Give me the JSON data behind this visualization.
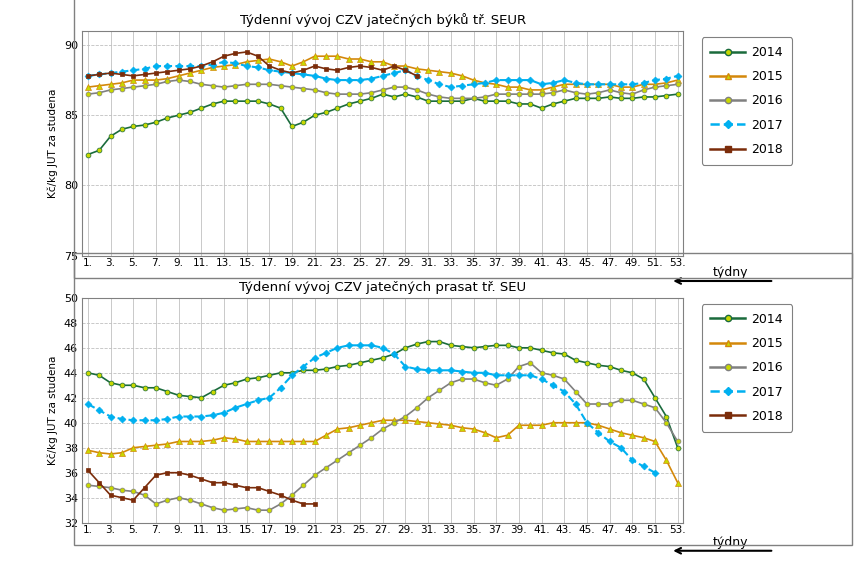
{
  "title1": "Týdenní vývoj CZV jatečných býků tř. SEUR",
  "title2": "Týdenní vývoj CZV jatečných prasat tř. SEU",
  "ylabel": "Kč/kg JUT za studena",
  "xlabel": "týdny",
  "weeks": [
    1,
    2,
    3,
    4,
    5,
    6,
    7,
    8,
    9,
    10,
    11,
    12,
    13,
    14,
    15,
    16,
    17,
    18,
    19,
    20,
    21,
    22,
    23,
    24,
    25,
    26,
    27,
    28,
    29,
    30,
    31,
    32,
    33,
    34,
    35,
    36,
    37,
    38,
    39,
    40,
    41,
    42,
    43,
    44,
    45,
    46,
    47,
    48,
    49,
    50,
    51,
    52,
    53
  ],
  "bulls_2014": [
    82.2,
    82.5,
    83.5,
    84.0,
    84.2,
    84.3,
    84.5,
    84.8,
    85.0,
    85.2,
    85.5,
    85.8,
    86.0,
    86.0,
    86.0,
    86.0,
    85.8,
    85.5,
    84.2,
    84.5,
    85.0,
    85.2,
    85.5,
    85.8,
    86.0,
    86.2,
    86.5,
    86.3,
    86.5,
    86.3,
    86.0,
    86.0,
    86.0,
    86.0,
    86.2,
    86.0,
    86.0,
    86.0,
    85.8,
    85.8,
    85.5,
    85.8,
    86.0,
    86.2,
    86.2,
    86.2,
    86.3,
    86.2,
    86.2,
    86.3,
    86.3,
    86.4,
    86.5
  ],
  "bulls_2015": [
    87.0,
    87.1,
    87.2,
    87.3,
    87.5,
    87.5,
    87.5,
    87.6,
    87.8,
    88.0,
    88.2,
    88.4,
    88.5,
    88.6,
    88.8,
    88.9,
    89.0,
    88.8,
    88.5,
    88.8,
    89.2,
    89.2,
    89.2,
    89.0,
    89.0,
    88.8,
    88.8,
    88.5,
    88.5,
    88.3,
    88.2,
    88.1,
    88.0,
    87.8,
    87.5,
    87.3,
    87.2,
    87.0,
    87.0,
    86.8,
    86.8,
    87.0,
    87.2,
    87.2,
    87.2,
    87.2,
    87.2,
    87.0,
    87.0,
    87.2,
    87.2,
    87.3,
    87.5
  ],
  "bulls_2016": [
    86.5,
    86.6,
    86.8,
    86.9,
    87.0,
    87.1,
    87.2,
    87.4,
    87.5,
    87.4,
    87.2,
    87.1,
    87.0,
    87.1,
    87.2,
    87.2,
    87.2,
    87.1,
    87.0,
    86.9,
    86.8,
    86.6,
    86.5,
    86.5,
    86.5,
    86.6,
    86.8,
    87.0,
    87.0,
    86.8,
    86.5,
    86.3,
    86.2,
    86.2,
    86.2,
    86.3,
    86.5,
    86.5,
    86.5,
    86.5,
    86.5,
    86.6,
    86.8,
    86.6,
    86.5,
    86.6,
    86.8,
    86.6,
    86.5,
    86.8,
    87.0,
    87.1,
    87.2
  ],
  "bulls_2017": [
    87.8,
    87.9,
    88.0,
    88.1,
    88.2,
    88.3,
    88.5,
    88.5,
    88.5,
    88.5,
    88.5,
    88.6,
    88.8,
    88.7,
    88.5,
    88.4,
    88.2,
    88.1,
    88.0,
    87.9,
    87.8,
    87.6,
    87.5,
    87.5,
    87.5,
    87.6,
    87.8,
    88.0,
    88.2,
    87.8,
    87.5,
    87.2,
    87.0,
    87.1,
    87.2,
    87.3,
    87.5,
    87.5,
    87.5,
    87.5,
    87.2,
    87.3,
    87.5,
    87.3,
    87.2,
    87.2,
    87.2,
    87.2,
    87.2,
    87.3,
    87.5,
    87.6,
    87.8
  ],
  "bulls_2018": [
    87.8,
    87.9,
    88.0,
    87.9,
    87.8,
    87.9,
    88.0,
    88.1,
    88.2,
    88.3,
    88.5,
    88.8,
    89.2,
    89.4,
    89.5,
    89.2,
    88.5,
    88.2,
    88.0,
    88.2,
    88.5,
    88.3,
    88.2,
    88.4,
    88.5,
    88.4,
    88.2,
    88.5,
    88.2,
    87.8,
    null,
    null,
    null,
    null,
    null,
    null,
    null,
    null,
    null,
    null,
    null,
    null,
    null,
    null,
    null,
    null,
    null,
    null,
    null,
    null,
    null,
    null,
    null
  ],
  "pigs_2014": [
    44.0,
    43.8,
    43.2,
    43.0,
    43.0,
    42.8,
    42.8,
    42.5,
    42.2,
    42.1,
    42.0,
    42.5,
    43.0,
    43.2,
    43.5,
    43.6,
    43.8,
    44.0,
    44.0,
    44.2,
    44.2,
    44.3,
    44.5,
    44.6,
    44.8,
    45.0,
    45.2,
    45.5,
    46.0,
    46.3,
    46.5,
    46.5,
    46.2,
    46.1,
    46.0,
    46.1,
    46.2,
    46.2,
    46.0,
    46.0,
    45.8,
    45.6,
    45.5,
    45.0,
    44.8,
    44.6,
    44.5,
    44.2,
    44.0,
    43.5,
    42.0,
    40.5,
    38.0
  ],
  "pigs_2015": [
    37.8,
    37.6,
    37.5,
    37.6,
    38.0,
    38.1,
    38.2,
    38.3,
    38.5,
    38.5,
    38.5,
    38.6,
    38.8,
    38.7,
    38.5,
    38.5,
    38.5,
    38.5,
    38.5,
    38.5,
    38.5,
    39.0,
    39.5,
    39.6,
    39.8,
    40.0,
    40.2,
    40.2,
    40.2,
    40.1,
    40.0,
    39.9,
    39.8,
    39.6,
    39.5,
    39.2,
    38.8,
    39.0,
    39.8,
    39.8,
    39.8,
    40.0,
    40.0,
    40.0,
    40.0,
    39.8,
    39.5,
    39.2,
    39.0,
    38.8,
    38.5,
    37.0,
    35.2
  ],
  "pigs_2016": [
    35.0,
    34.9,
    34.8,
    34.6,
    34.5,
    34.2,
    33.5,
    33.8,
    34.0,
    33.8,
    33.5,
    33.2,
    33.0,
    33.1,
    33.2,
    33.0,
    33.0,
    33.5,
    34.2,
    35.0,
    35.8,
    36.4,
    37.0,
    37.6,
    38.2,
    38.8,
    39.5,
    40.0,
    40.5,
    41.2,
    42.0,
    42.6,
    43.2,
    43.5,
    43.5,
    43.2,
    43.0,
    43.5,
    44.5,
    44.8,
    44.0,
    43.8,
    43.5,
    42.5,
    41.5,
    41.5,
    41.5,
    41.8,
    41.8,
    41.5,
    41.2,
    40.0,
    38.5
  ],
  "pigs_2017": [
    41.5,
    41.0,
    40.5,
    40.3,
    40.2,
    40.2,
    40.2,
    40.3,
    40.5,
    40.5,
    40.5,
    40.6,
    40.8,
    41.2,
    41.5,
    41.8,
    42.0,
    42.8,
    43.8,
    44.5,
    45.2,
    45.6,
    46.0,
    46.2,
    46.2,
    46.2,
    46.0,
    45.5,
    44.5,
    44.3,
    44.2,
    44.2,
    44.2,
    44.1,
    44.0,
    44.0,
    43.8,
    43.8,
    43.8,
    43.8,
    43.5,
    43.0,
    42.5,
    41.5,
    40.0,
    39.2,
    38.5,
    38.0,
    37.0,
    36.5,
    36.0,
    null,
    null
  ],
  "pigs_2018": [
    36.2,
    35.2,
    34.2,
    34.0,
    33.8,
    34.8,
    35.8,
    36.0,
    36.0,
    35.8,
    35.5,
    35.2,
    35.2,
    35.0,
    34.8,
    34.8,
    34.5,
    34.2,
    33.8,
    33.5,
    33.5,
    null,
    null,
    null,
    null,
    null,
    null,
    null,
    null,
    null,
    null,
    null,
    null,
    null,
    null,
    null,
    null,
    null,
    null,
    null,
    null,
    null,
    null,
    null,
    null,
    null,
    null,
    null,
    null,
    null,
    null,
    null,
    null
  ],
  "color_2014": "#1a6b3c",
  "color_2015": "#d4880a",
  "color_2016": "#808080",
  "color_2017": "#00b0f0",
  "color_2018": "#7b2c0a",
  "bulls_ylim": [
    75,
    91
  ],
  "bulls_yticks": [
    75,
    80,
    85,
    90
  ],
  "pigs_ylim": [
    32,
    50
  ],
  "pigs_yticks": [
    32,
    34,
    36,
    38,
    40,
    42,
    44,
    46,
    48,
    50
  ],
  "xticks": [
    1,
    3,
    5,
    7,
    9,
    11,
    13,
    15,
    17,
    19,
    21,
    23,
    25,
    27,
    29,
    31,
    33,
    35,
    37,
    39,
    41,
    43,
    45,
    47,
    49,
    51,
    53
  ],
  "xtick_labels": [
    "1.",
    "3.",
    "5.",
    "7.",
    "9.",
    "11.",
    "13.",
    "15.",
    "17.",
    "19.",
    "21.",
    "23.",
    "25.",
    "27.",
    "29.",
    "31.",
    "33.",
    "35.",
    "37.",
    "39.",
    "41.",
    "43.",
    "45.",
    "47.",
    "49.",
    "51.",
    "53."
  ],
  "bg_color": "#ffffff",
  "plot_bg": "#ffffff",
  "grid_color": "#c0c0c0",
  "border_color": "#808080"
}
